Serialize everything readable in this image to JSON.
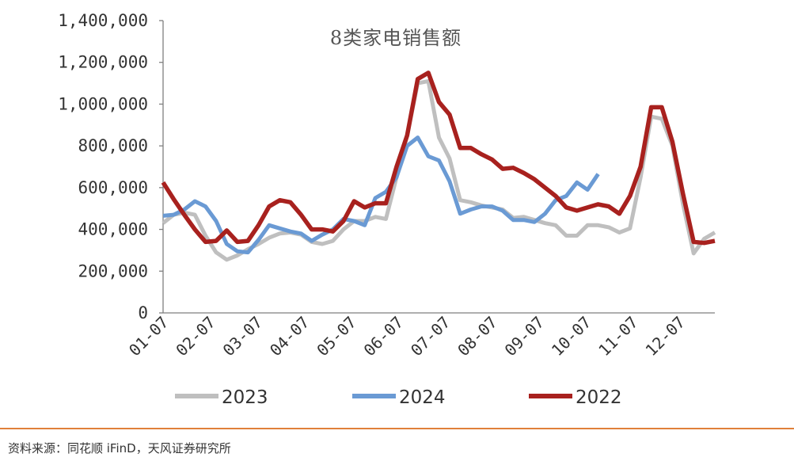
{
  "chart_data": {
    "type": "line",
    "title": "8类家电销售额",
    "xlabel": "",
    "ylabel": "",
    "ylim": [
      0,
      1400000
    ],
    "yticks": [
      "0",
      "200,000",
      "400,000",
      "600,000",
      "800,000",
      "1,000,000",
      "1,200,000",
      "1,400,000"
    ],
    "xticks": [
      "01-07",
      "02-07",
      "03-07",
      "04-07",
      "05-07",
      "06-07",
      "07-07",
      "08-07",
      "09-07",
      "10-07",
      "11-07",
      "12-07"
    ],
    "x_unit": "week",
    "grid": false,
    "legend": "bottom",
    "series": [
      {
        "name": "2023",
        "color": "#BFBFBF",
        "values": [
          430000,
          470000,
          480000,
          470000,
          370000,
          290000,
          255000,
          275000,
          305000,
          330000,
          360000,
          380000,
          385000,
          375000,
          340000,
          330000,
          345000,
          400000,
          440000,
          440000,
          460000,
          450000,
          650000,
          850000,
          1100000,
          1110000,
          840000,
          740000,
          540000,
          530000,
          515000,
          505000,
          495000,
          455000,
          460000,
          445000,
          430000,
          420000,
          370000,
          370000,
          420000,
          420000,
          410000,
          385000,
          405000,
          650000,
          940000,
          930000,
          800000,
          520000,
          285000,
          355000,
          385000
        ]
      },
      {
        "name": "2024",
        "color": "#6A9AD4",
        "values": [
          465000,
          470000,
          495000,
          535000,
          510000,
          440000,
          330000,
          295000,
          290000,
          350000,
          420000,
          405000,
          390000,
          380000,
          345000,
          375000,
          400000,
          450000,
          440000,
          420000,
          550000,
          580000,
          650000,
          800000,
          840000,
          750000,
          730000,
          630000,
          475000,
          495000,
          510000,
          510000,
          490000,
          445000,
          445000,
          435000,
          475000,
          540000,
          560000,
          625000,
          590000,
          665000
        ]
      },
      {
        "name": "2022",
        "color": "#A8211E",
        "values": [
          625000,
          545000,
          470000,
          400000,
          340000,
          345000,
          395000,
          340000,
          345000,
          420000,
          510000,
          540000,
          530000,
          470000,
          400000,
          400000,
          390000,
          440000,
          535000,
          505000,
          525000,
          525000,
          700000,
          850000,
          1120000,
          1150000,
          1010000,
          950000,
          790000,
          790000,
          760000,
          735000,
          690000,
          695000,
          670000,
          640000,
          600000,
          560000,
          505000,
          490000,
          505000,
          520000,
          510000,
          475000,
          560000,
          700000,
          985000,
          985000,
          820000,
          570000,
          340000,
          335000,
          345000
        ]
      }
    ],
    "legend_order": [
      "2023",
      "2024",
      "2022"
    ]
  },
  "footer": {
    "source": "资料来源：同花顺 iFinD，天风证券研究所",
    "rule_color": "#E0803A"
  }
}
